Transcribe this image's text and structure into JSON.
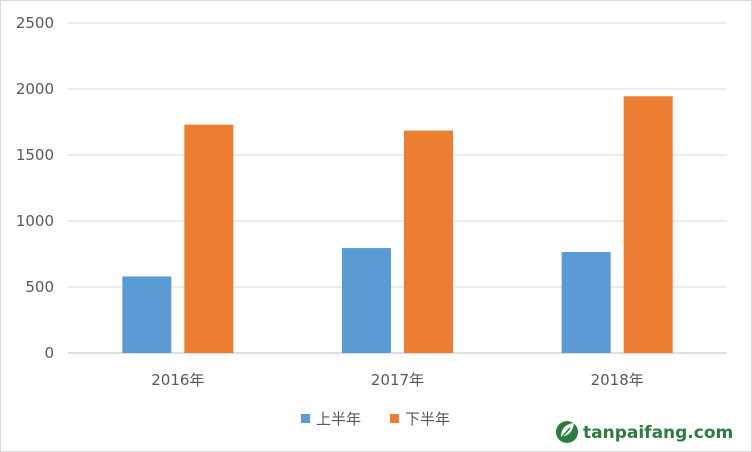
{
  "chart_data": {
    "type": "bar",
    "categories": [
      "2016年",
      "2017年",
      "2018年"
    ],
    "series": [
      {
        "name": "上半年",
        "color": "#5b9bd5",
        "values": [
          580,
          795,
          765
        ]
      },
      {
        "name": "下半年",
        "color": "#ed7d31",
        "values": [
          1730,
          1685,
          1945
        ]
      }
    ],
    "yticks": [
      "0",
      "500",
      "1000",
      "1500",
      "2000",
      "2500"
    ],
    "ylim": [
      0,
      2500
    ],
    "grid": true,
    "legend_position": "bottom-center"
  },
  "watermark": {
    "text": "tanpaifang.com",
    "icon": "leaf-logo-icon",
    "color": "#2a7d3f"
  }
}
